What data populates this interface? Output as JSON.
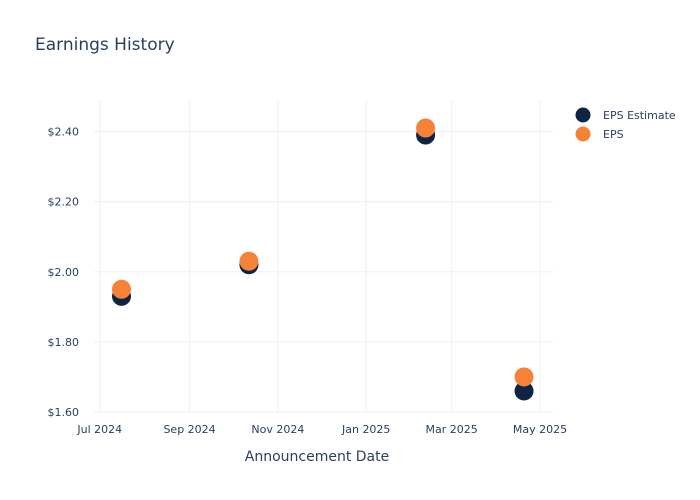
{
  "chart_data": {
    "type": "scatter",
    "title": "Earnings History",
    "xlabel": "Announcement Date",
    "ylabel": "",
    "x_ticks": [
      "Jul 2024",
      "Sep 2024",
      "Nov 2024",
      "Jan 2025",
      "Mar 2025",
      "May 2025"
    ],
    "y_ticks": [
      "$1.60",
      "$1.80",
      "$2.00",
      "$2.20",
      "$2.40"
    ],
    "xlim": [
      "2024-06-27",
      "2025-05-10"
    ],
    "ylim": [
      1.6,
      2.49
    ],
    "grid": true,
    "legend_position": "top-right",
    "series": [
      {
        "name": "EPS Estimate",
        "color": "#0f2343",
        "points": [
          {
            "x": "2024-07-16",
            "y": 1.93
          },
          {
            "x": "2024-10-12",
            "y": 2.02
          },
          {
            "x": "2025-02-11",
            "y": 2.39
          },
          {
            "x": "2025-04-20",
            "y": 1.66
          }
        ]
      },
      {
        "name": "EPS",
        "color": "#f58236",
        "points": [
          {
            "x": "2024-07-16",
            "y": 1.95
          },
          {
            "x": "2024-10-12",
            "y": 2.03
          },
          {
            "x": "2025-02-11",
            "y": 2.41
          },
          {
            "x": "2025-04-20",
            "y": 1.7
          }
        ]
      }
    ]
  }
}
